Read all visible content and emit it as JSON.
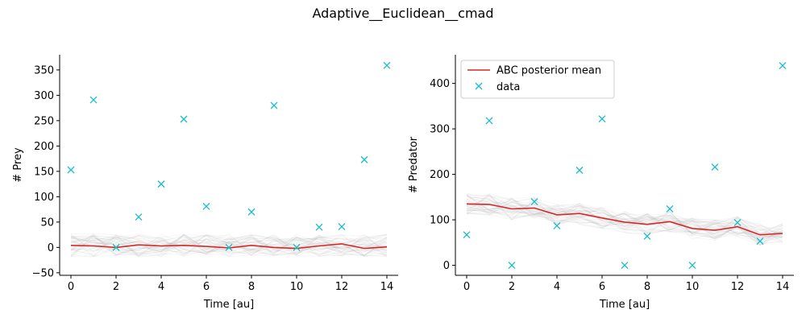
{
  "figure": {
    "title": "Adaptive__Euclidean__cmad"
  },
  "colors": {
    "mean_line": "#d62728",
    "data_marker": "#17becf",
    "samples": "#7f7f7f"
  },
  "legend": {
    "mean_label": "ABC posterior mean",
    "data_label": "data",
    "placement": "upper-left of right panel"
  },
  "chart_data": [
    {
      "type": "line",
      "subplot": "left",
      "xlabel": "Time [au]",
      "ylabel": "# Prey",
      "xlim": [
        -0.5,
        14.5
      ],
      "ylim": [
        -55,
        380
      ],
      "xticks": [
        0,
        2,
        4,
        6,
        8,
        10,
        12,
        14
      ],
      "yticks": [
        -50,
        0,
        50,
        100,
        150,
        200,
        250,
        300,
        350
      ],
      "grid": false,
      "x": [
        0,
        1,
        2,
        3,
        4,
        5,
        6,
        7,
        8,
        9,
        10,
        11,
        12,
        13,
        14
      ],
      "series": [
        {
          "name": "ABC posterior mean",
          "kind": "line",
          "values": [
            4,
            3,
            0,
            5,
            3,
            4,
            2,
            -1,
            4,
            0,
            -2,
            3,
            7,
            -2,
            1
          ]
        },
        {
          "name": "data",
          "kind": "marker-x",
          "values": [
            153,
            291,
            0,
            60,
            125,
            253,
            81,
            0,
            70,
            280,
            0,
            40,
            41,
            173,
            359
          ]
        }
      ],
      "posterior_band": {
        "lower": -20,
        "upper": 28
      }
    },
    {
      "type": "line",
      "subplot": "right",
      "xlabel": "Time [au]",
      "ylabel": "# Predator",
      "xlim": [
        -0.5,
        14.5
      ],
      "ylim": [
        -22,
        463
      ],
      "xticks": [
        0,
        2,
        4,
        6,
        8,
        10,
        12,
        14
      ],
      "yticks": [
        0,
        100,
        200,
        300,
        400
      ],
      "grid": false,
      "x": [
        0,
        1,
        2,
        3,
        4,
        5,
        6,
        7,
        8,
        9,
        10,
        11,
        12,
        13,
        14
      ],
      "series": [
        {
          "name": "ABC posterior mean",
          "kind": "line",
          "values": [
            135,
            134,
            124,
            126,
            111,
            114,
            104,
            95,
            90,
            96,
            81,
            77,
            85,
            67,
            70
          ]
        },
        {
          "name": "data",
          "kind": "marker-x",
          "values": [
            67,
            318,
            0,
            140,
            87,
            209,
            322,
            0,
            64,
            124,
            0,
            216,
            94,
            53,
            439
          ]
        }
      ],
      "posterior_band": {
        "halfwidth": 25
      }
    }
  ]
}
